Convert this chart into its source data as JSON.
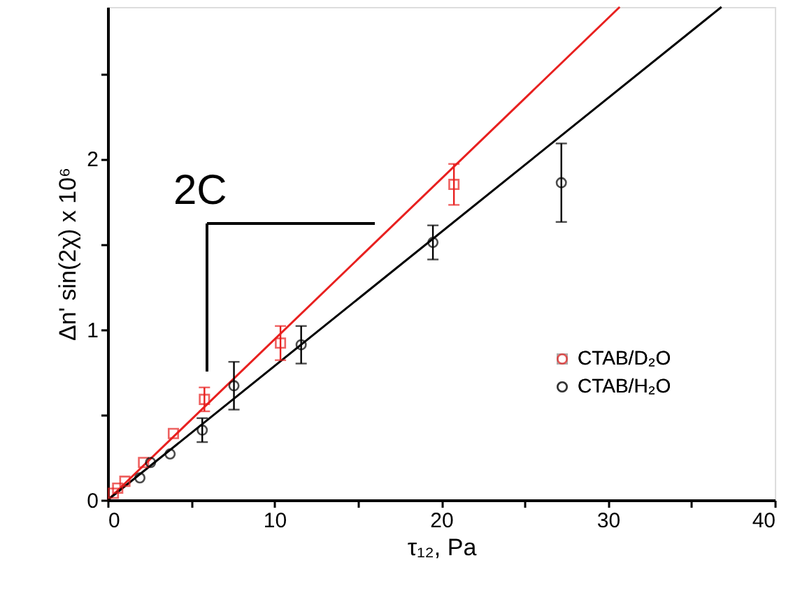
{
  "chart_data": {
    "type": "scatter",
    "xlabel": "τ₁₂, Pa",
    "ylabel": "Δn' sin(2χ) x 10⁶",
    "xlim": [
      0,
      40
    ],
    "ylim": [
      0,
      2.89
    ],
    "xticks": [
      0,
      {
        "value": 5,
        "label": null
      },
      10,
      {
        "value": 15,
        "label": null
      },
      20,
      {
        "value": 25,
        "label": null
      },
      30,
      {
        "value": 35,
        "label": null
      },
      40
    ],
    "yticks": [
      0,
      {
        "value": 0.5,
        "label": null
      },
      1,
      {
        "value": 1.5,
        "label": null
      },
      2,
      {
        "value": 2.5,
        "label": null
      }
    ],
    "grid": false,
    "legend": "bottom right",
    "annotations": [
      "2C"
    ],
    "series": [
      {
        "name": "CTAB/D₂O",
        "color": "#e8201f",
        "marker": "square",
        "x": [
          0.34,
          0.6,
          1.03,
          2.15,
          3.94,
          5.8,
          10.36,
          20.76
        ],
        "values": [
          0.04,
          0.07,
          0.11,
          0.22,
          0.39,
          0.59,
          0.92,
          1.85
        ],
        "errors": [
          null,
          null,
          null,
          null,
          null,
          0.07,
          0.1,
          0.12
        ]
      },
      {
        "name": "CTAB/H₂O",
        "color": "#000000",
        "marker": "circle",
        "x": [
          1.93,
          2.57,
          3.74,
          5.67,
          7.57,
          11.6,
          19.5,
          27.2
        ],
        "values": [
          0.13,
          0.22,
          0.27,
          0.41,
          0.67,
          0.91,
          1.51,
          1.86
        ],
        "errors": [
          null,
          null,
          null,
          0.07,
          0.14,
          0.11,
          0.1,
          0.23
        ]
      },
      {
        "type": "line",
        "color": "#e8201f",
        "marker": "none",
        "x": [
          0,
          30.7
        ],
        "values": [
          0,
          2.89
        ]
      },
      {
        "type": "line",
        "color": "#000000",
        "marker": "none",
        "x": [
          0,
          36.8
        ],
        "values": [
          0,
          2.89
        ]
      }
    ]
  }
}
